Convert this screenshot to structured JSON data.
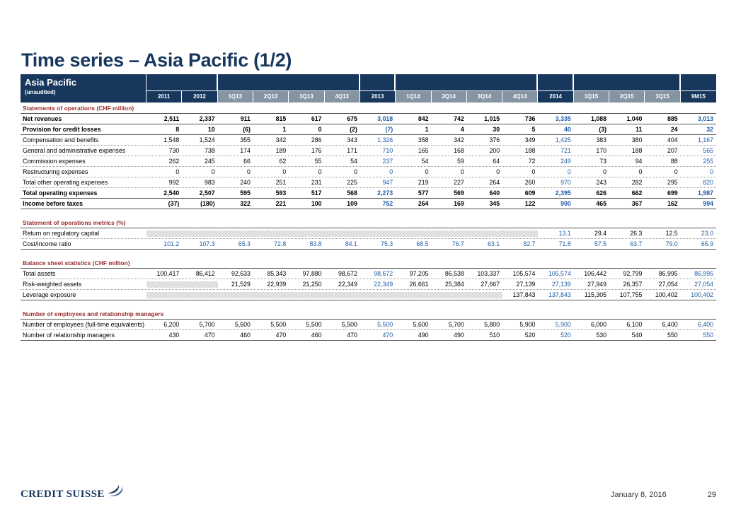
{
  "slide": {
    "title": "Time series – Asia Pacific (1/2)",
    "footer": {
      "logo_text": "CREDIT SUISSE",
      "date": "January 8, 2016",
      "page_number": "29"
    }
  },
  "colors": {
    "navy": "#17375D",
    "quarter_gray": "#8494A3",
    "blue_value": "#1F5CA8",
    "section_red": "#9B2C2C"
  },
  "table": {
    "title": "Asia Pacific",
    "subtitle": "(unaudited)",
    "columns": [
      "2011",
      "2012",
      "1Q13",
      "2Q13",
      "3Q13",
      "4Q13",
      "2013",
      "1Q14",
      "2Q14",
      "3Q14",
      "4Q14",
      "2014",
      "1Q15",
      "2Q15",
      "3Q15",
      "9M15"
    ],
    "header_groups": [
      2,
      4,
      1,
      4,
      1,
      3,
      1
    ],
    "year_column_indexes": [
      0,
      1,
      6,
      11,
      15
    ],
    "blue_value_columns": [
      6,
      11,
      15
    ],
    "sections": [
      {
        "header": "Statements of operations (CHF million)",
        "rows": [
          {
            "label": "Net revenues",
            "bold": true,
            "values": [
              "2,511",
              "2,337",
              "911",
              "815",
              "617",
              "675",
              "3,018",
              "842",
              "742",
              "1,015",
              "736",
              "3,335",
              "1,088",
              "1,040",
              "885",
              "3,013"
            ]
          },
          {
            "label": "Provision for credit losses",
            "bold": true,
            "values": [
              "8",
              "10",
              "(6)",
              "1",
              "0",
              "(2)",
              "(7)",
              "1",
              "4",
              "30",
              "5",
              "40",
              "(3)",
              "11",
              "24",
              "32"
            ]
          },
          {
            "label": "Compensation and benefits",
            "bold": false,
            "values": [
              "1,548",
              "1,524",
              "355",
              "342",
              "286",
              "343",
              "1,326",
              "358",
              "342",
              "376",
              "349",
              "1,425",
              "383",
              "380",
              "404",
              "1,167"
            ]
          },
          {
            "label": "General and administrative expenses",
            "bold": false,
            "values": [
              "730",
              "738",
              "174",
              "189",
              "176",
              "171",
              "710",
              "165",
              "168",
              "200",
              "188",
              "721",
              "170",
              "188",
              "207",
              "565"
            ]
          },
          {
            "label": "Commission expenses",
            "bold": false,
            "values": [
              "262",
              "245",
              "66",
              "62",
              "55",
              "54",
              "237",
              "54",
              "59",
              "64",
              "72",
              "249",
              "73",
              "94",
              "88",
              "255"
            ]
          },
          {
            "label": "Restructuring expenses",
            "bold": false,
            "values": [
              "0",
              "0",
              "0",
              "0",
              "0",
              "0",
              "0",
              "0",
              "0",
              "0",
              "0",
              "0",
              "0",
              "0",
              "0",
              "0"
            ]
          },
          {
            "label": "Total other operating expenses",
            "bold": false,
            "values": [
              "992",
              "983",
              "240",
              "251",
              "231",
              "225",
              "947",
              "219",
              "227",
              "264",
              "260",
              "970",
              "243",
              "282",
              "295",
              "820"
            ]
          },
          {
            "label": "Total operating expenses",
            "bold": true,
            "values": [
              "2,540",
              "2,507",
              "595",
              "593",
              "517",
              "568",
              "2,273",
              "577",
              "569",
              "640",
              "609",
              "2,395",
              "626",
              "662",
              "699",
              "1,987"
            ]
          },
          {
            "label": "Income before taxes",
            "bold": true,
            "values": [
              "(37)",
              "(180)",
              "322",
              "221",
              "100",
              "109",
              "752",
              "264",
              "169",
              "345",
              "122",
              "900",
              "465",
              "367",
              "162",
              "994"
            ]
          }
        ]
      },
      {
        "header": "Statement of operations metrics (%)",
        "rows": [
          {
            "label": "Return on regulatory capital",
            "bold": false,
            "values": [
              null,
              null,
              null,
              null,
              null,
              null,
              null,
              null,
              null,
              null,
              null,
              "13.1",
              "29.4",
              "26.3",
              "12.5",
              "23.0"
            ]
          },
          {
            "label": "Cost/income ratio",
            "bold": false,
            "blue_all": true,
            "values": [
              "101.2",
              "107.3",
              "65.3",
              "72.8",
              "83.8",
              "84.1",
              "75.3",
              "68.5",
              "76.7",
              "63.1",
              "82.7",
              "71.8",
              "57.5",
              "63.7",
              "79.0",
              "65.9"
            ]
          }
        ]
      },
      {
        "header": "Balance sheet statistics (CHF million)",
        "rows": [
          {
            "label": "Total assets",
            "bold": false,
            "values": [
              "100,417",
              "86,412",
              "92,633",
              "85,343",
              "97,880",
              "98,672",
              "98,672",
              "97,205",
              "86,538",
              "103,337",
              "105,574",
              "105,574",
              "106,442",
              "92,799",
              "86,995",
              "86,995"
            ]
          },
          {
            "label": "Risk-weighted assets",
            "bold": false,
            "values": [
              null,
              null,
              "21,529",
              "22,939",
              "21,250",
              "22,349",
              "22,349",
              "26,661",
              "25,384",
              "27,667",
              "27,139",
              "27,139",
              "27,949",
              "26,357",
              "27,054",
              "27,054"
            ]
          },
          {
            "label": "Leverage exposure",
            "bold": false,
            "values": [
              null,
              null,
              null,
              null,
              null,
              null,
              null,
              null,
              null,
              null,
              "137,843",
              "137,843",
              "115,305",
              "107,755",
              "100,402",
              "100,402"
            ]
          }
        ]
      },
      {
        "header": "Number of employees and relationship managers",
        "rows": [
          {
            "label": "Number of employees (full-time equivalents)",
            "bold": false,
            "values": [
              "6,200",
              "5,700",
              "5,600",
              "5,500",
              "5,500",
              "5,500",
              "5,500",
              "5,600",
              "5,700",
              "5,800",
              "5,900",
              "5,900",
              "6,000",
              "6,100",
              "6,400",
              "6,400"
            ]
          },
          {
            "label": "Number of relationship managers",
            "bold": false,
            "values": [
              "430",
              "470",
              "460",
              "470",
              "460",
              "470",
              "470",
              "490",
              "490",
              "510",
              "520",
              "520",
              "530",
              "540",
              "550",
              "550"
            ]
          }
        ]
      }
    ]
  }
}
